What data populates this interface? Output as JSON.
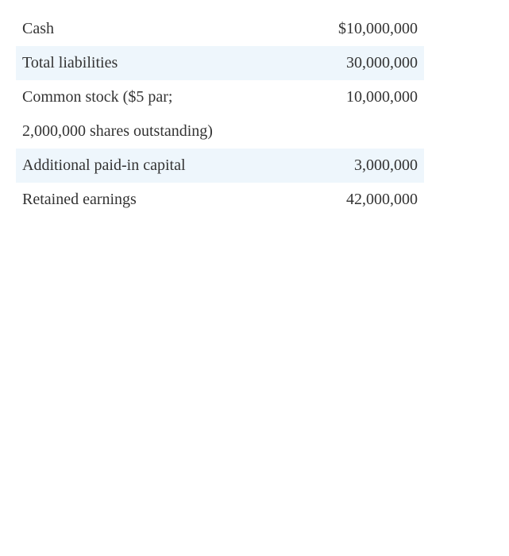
{
  "statement": {
    "rows": [
      {
        "label": "Cash",
        "value": "$10,000,000"
      },
      {
        "label": "Total liabilities",
        "value": "30,000,000"
      },
      {
        "label": "Common stock ($5 par;",
        "value": "10,000,000"
      },
      {
        "label": "2,000,000 shares outstanding)",
        "value": ""
      },
      {
        "label": "Additional paid-in capital",
        "value": "3,000,000"
      },
      {
        "label": "Retained earnings",
        "value": "42,000,000"
      }
    ],
    "shade_color": "#eef6fc"
  }
}
